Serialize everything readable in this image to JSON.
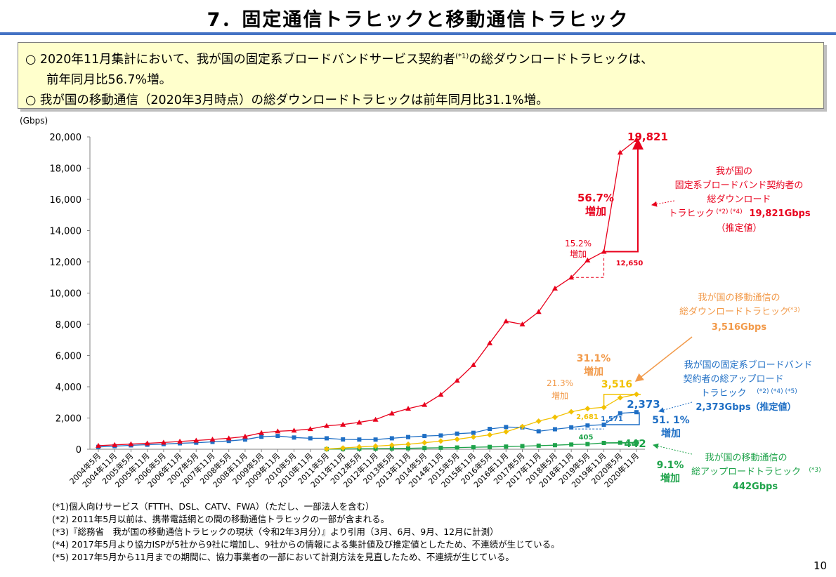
{
  "title": "7．固定通信トラヒックと移動通信トラヒック",
  "summary": {
    "line1_pre": "○ 2020年11月集計において、我が国の固定系ブロードバンドサービス契約者",
    "line1_sup": "(*1)",
    "line1_post": "の総ダウンロードトラヒックは、",
    "line2": "前年同月比56.7%増。",
    "line3": "○ 我が国の移動通信（2020年3月時点）の総ダウンロードトラヒックは前年同月比31.1%増。"
  },
  "chart_data": {
    "type": "line",
    "y_unit_label": "(Gbps)",
    "ylim": [
      0,
      20000
    ],
    "y_ticks": [
      "0",
      "2,000",
      "4,000",
      "6,000",
      "8,000",
      "10,000",
      "12,000",
      "14,000",
      "16,000",
      "18,000",
      "20,000"
    ],
    "y_tick_values": [
      0,
      2000,
      4000,
      6000,
      8000,
      10000,
      12000,
      14000,
      16000,
      18000,
      20000
    ],
    "categories": [
      "2004年5月",
      "2004年11月",
      "2005年5月",
      "2005年11月",
      "2006年5月",
      "2006年11月",
      "2007年5月",
      "2007年11月",
      "2008年5月",
      "2008年11月",
      "2009年5月",
      "2009年11月",
      "2010年5月",
      "2010年11月",
      "2011年5月",
      "2011年11月",
      "2012年5月",
      "2012年11月",
      "2013年5月",
      "2013年11月",
      "2014年5月",
      "2014年11月",
      "2015年5月",
      "2015年11月",
      "2016年5月",
      "2016年11月",
      "2017年5月",
      "2017年11月",
      "2018年5月",
      "2018年11月",
      "2019年5月",
      "2019年11月",
      "2020年5月",
      "2020年11月"
    ],
    "fixed_down": {
      "name": "我が国の固定系ブロードバンド契約者の総ダウンロードトラヒック",
      "color": "#e8001c",
      "points": [
        [
          0,
          230
        ],
        [
          1,
          280
        ],
        [
          2,
          330
        ],
        [
          3,
          380
        ],
        [
          4,
          430
        ],
        [
          5,
          500
        ],
        [
          6,
          560
        ],
        [
          7,
          630
        ],
        [
          8,
          700
        ],
        [
          9,
          820
        ],
        [
          10,
          1050
        ],
        [
          11,
          1150
        ],
        [
          12,
          1200
        ],
        [
          13,
          1300
        ],
        [
          14,
          1500
        ],
        [
          15,
          1580
        ],
        [
          16,
          1720
        ],
        [
          17,
          1900
        ],
        [
          18,
          2300
        ],
        [
          19,
          2600
        ],
        [
          20,
          2850
        ],
        [
          21,
          3500
        ],
        [
          22,
          4400
        ],
        [
          23,
          5400
        ],
        [
          24,
          6800
        ],
        [
          25,
          8200
        ],
        [
          26,
          8000
        ],
        [
          27,
          8800
        ],
        [
          28,
          10300
        ],
        [
          29,
          11000
        ],
        [
          30,
          12100
        ],
        [
          31,
          12650
        ],
        [
          32,
          19000
        ],
        [
          33,
          19821
        ]
      ]
    },
    "fixed_up": {
      "name": "我が国の固定系ブロードバンド契約者の総アップロードトラヒック",
      "color": "#1f6fc5",
      "points": [
        [
          0,
          150
        ],
        [
          1,
          200
        ],
        [
          2,
          250
        ],
        [
          3,
          290
        ],
        [
          4,
          330
        ],
        [
          5,
          380
        ],
        [
          6,
          420
        ],
        [
          7,
          470
        ],
        [
          8,
          530
        ],
        [
          9,
          620
        ],
        [
          10,
          800
        ],
        [
          11,
          850
        ],
        [
          12,
          750
        ],
        [
          13,
          700
        ],
        [
          14,
          700
        ],
        [
          15,
          630
        ],
        [
          16,
          620
        ],
        [
          17,
          620
        ],
        [
          18,
          700
        ],
        [
          19,
          780
        ],
        [
          20,
          850
        ],
        [
          21,
          880
        ],
        [
          22,
          1000
        ],
        [
          23,
          1050
        ],
        [
          24,
          1300
        ],
        [
          25,
          1420
        ],
        [
          26,
          1400
        ],
        [
          27,
          1150
        ],
        [
          28,
          1280
        ],
        [
          29,
          1400
        ],
        [
          30,
          1520
        ],
        [
          31,
          1571
        ],
        [
          32,
          2300
        ],
        [
          33,
          2373
        ]
      ]
    },
    "mobile_down": {
      "name": "我が国の移動通信の総ダウンロードトラヒック",
      "color": "#f2c100",
      "points": [
        [
          14,
          20
        ],
        [
          15,
          80
        ],
        [
          16,
          150
        ],
        [
          17,
          200
        ],
        [
          18,
          260
        ],
        [
          19,
          320
        ],
        [
          20,
          420
        ],
        [
          21,
          520
        ],
        [
          22,
          640
        ],
        [
          23,
          780
        ],
        [
          24,
          920
        ],
        [
          25,
          1120
        ],
        [
          26,
          1450
        ],
        [
          27,
          1800
        ],
        [
          28,
          2050
        ],
        [
          29,
          2400
        ],
        [
          30,
          2600
        ],
        [
          31,
          2681
        ],
        [
          32,
          3300
        ],
        [
          33,
          3516
        ]
      ]
    },
    "mobile_up": {
      "name": "我が国の移動通信の総アップロードトラヒック",
      "color": "#1ea34a",
      "points": [
        [
          14,
          10
        ],
        [
          15,
          20
        ],
        [
          16,
          30
        ],
        [
          17,
          40
        ],
        [
          18,
          50
        ],
        [
          19,
          60
        ],
        [
          20,
          80
        ],
        [
          21,
          95
        ],
        [
          22,
          110
        ],
        [
          23,
          130
        ],
        [
          24,
          150
        ],
        [
          25,
          170
        ],
        [
          26,
          200
        ],
        [
          27,
          230
        ],
        [
          28,
          260
        ],
        [
          29,
          300
        ],
        [
          30,
          330
        ],
        [
          31,
          405
        ],
        [
          32,
          420
        ],
        [
          33,
          442
        ]
      ]
    },
    "value_labels": {
      "fixed_down_end": "19,821",
      "fixed_down_prev": "12,650",
      "fixed_up_end": "2,373",
      "fixed_up_prev": "1,571",
      "mobile_down_end": "3,516",
      "mobile_down_prev": "2,681",
      "mobile_up_end": "442",
      "mobile_up_prev": "405"
    },
    "growth_labels": {
      "fixed_down_pct": "56.7%",
      "fixed_down_word": "増加",
      "fixed_down_prev_pct": "15.2%",
      "fixed_down_prev_word": "増加",
      "mobile_down_pct": "31.1%",
      "mobile_down_word": "増加",
      "mobile_down_prev_pct": "21.3%",
      "mobile_down_prev_word": "増加",
      "fixed_up_pct": "51. 1%",
      "fixed_up_word": "増加",
      "mobile_up_pct": "9.1%",
      "mobile_up_word": "増加"
    },
    "legend_boxes": {
      "fixed_down": [
        "我が国の",
        "固定系ブロードバンド契約者の",
        "総ダウンロード",
        "トラヒック",
        "(*2) (*4)",
        "19,821Gbps",
        "（推定値）"
      ],
      "mobile_down": [
        "我が国の移動通信の",
        "総ダウンロードトラヒック",
        "(*3)",
        "3,516Gbps"
      ],
      "fixed_up": [
        "我が国の固定系ブロードバンド",
        "契約者の総アップロード",
        "トラヒック",
        "(*2) (*4) (*5)",
        "2,373Gbps（推定値）"
      ],
      "mobile_up": [
        "我が国の移動通信の",
        "総アップロードトラヒック",
        "(*3)",
        "442Gbps"
      ]
    }
  },
  "notes": [
    "(*1)個人向けサービス（FTTH、DSL、CATV、FWA）（ただし、一部法人を含む）",
    "(*2) 2011年5月以前は、携帯電話網との間の移動通信トラヒックの一部が含まれる。",
    "(*3)『総務省　我が国の移動通信トラヒックの現状（令和2年3月分）』より引用（3月、6月、9月、12月に計測）",
    "(*4) 2017年5月より協力ISPが5社から9社に増加し、9社からの情報による集計値及び推定値としたため、不連続が生じている。",
    "(*5) 2017年5月から11月までの期間に、協力事業者の一部において計測方法を見直したため、不連続が生じている。"
  ],
  "page_number": "10"
}
